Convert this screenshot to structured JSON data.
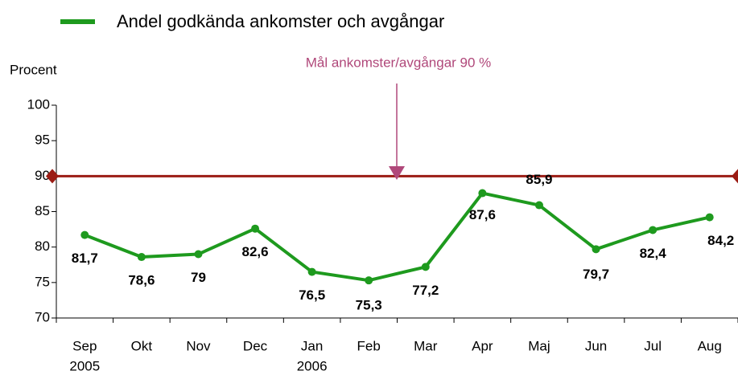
{
  "chart_data": {
    "type": "line",
    "categories": [
      "Sep",
      "Okt",
      "Nov",
      "Dec",
      "Jan",
      "Feb",
      "Mar",
      "Apr",
      "Maj",
      "Jun",
      "Jul",
      "Aug"
    ],
    "category_years": [
      "2005",
      null,
      null,
      null,
      "2006",
      null,
      null,
      null,
      null,
      null,
      null,
      null
    ],
    "series": [
      {
        "name": "Andel godkända ankomster och avgångar",
        "color": "#1e9a1e",
        "values": [
          81.7,
          78.6,
          79,
          82.6,
          76.5,
          75.3,
          77.2,
          87.6,
          85.9,
          79.7,
          82.4,
          84.2
        ],
        "value_labels": [
          "81,7",
          "78,6",
          "79",
          "82,6",
          "76,5",
          "75,3",
          "77,2",
          "87,6",
          "85,9",
          "79,7",
          "82,4",
          "84,2"
        ]
      }
    ],
    "ylabel": "Procent",
    "ylim": [
      70,
      100
    ],
    "yticks": [
      70,
      75,
      80,
      85,
      90,
      95,
      100
    ],
    "target": {
      "value": 90,
      "label": "Mål ankomster/avgångar 90 %",
      "color": "#9b1c14",
      "label_color": "#b0487a"
    },
    "grid": false,
    "legend": "top"
  }
}
